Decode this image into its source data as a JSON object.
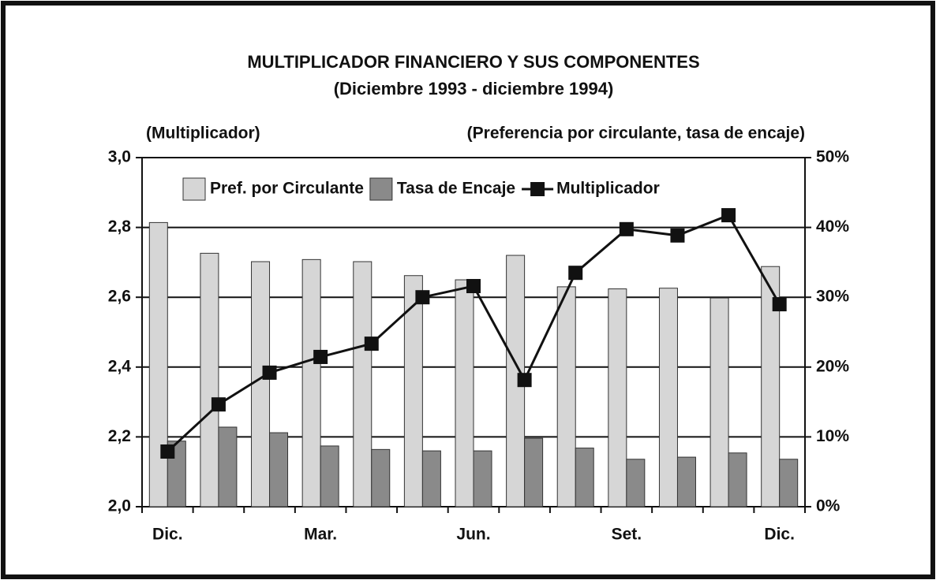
{
  "chart_data": {
    "type": "bar_line",
    "title": "MULTIPLICADOR FINANCIERO Y SUS COMPONENTES",
    "subtitle": "(Diciembre 1993 - diciembre 1994)",
    "y_axis_label": "(Multiplicador)",
    "y2_axis_label": "(Preferencia por circulante, tasa de encaje)",
    "categories": [
      "Dic.",
      null,
      null,
      "Mar.",
      null,
      null,
      "Jun.",
      null,
      null,
      "Set.",
      null,
      null,
      "Dic."
    ],
    "series": [
      {
        "name": "Pref. por Circulante",
        "type": "bar",
        "axis": "y2",
        "color": "#d6d6d6",
        "values": [
          40.7,
          36.3,
          35.1,
          35.4,
          35.1,
          33.1,
          32.5,
          36.0,
          31.5,
          31.2,
          31.3,
          29.9,
          34.4
        ]
      },
      {
        "name": "Tasa de Encaje",
        "type": "bar",
        "axis": "y2",
        "color": "#8a8a8a",
        "values": [
          9.4,
          11.4,
          10.6,
          8.7,
          8.2,
          8.0,
          8.0,
          9.8,
          8.4,
          6.8,
          7.1,
          7.7,
          6.8
        ]
      },
      {
        "name": "Multiplicador",
        "type": "line",
        "color": "#111111",
        "values": [
          2.158,
          2.293,
          2.384,
          2.429,
          2.467,
          2.6,
          2.632,
          2.363,
          2.67,
          2.795,
          2.777,
          2.835,
          2.58
        ]
      }
    ],
    "ylim": [
      2.0,
      3.0
    ],
    "yticks": [
      {
        "value": 2.0,
        "label": "2,0"
      },
      {
        "value": 2.2,
        "label": "2,2"
      },
      {
        "value": 2.4,
        "label": "2,4"
      },
      {
        "value": 2.6,
        "label": "2,6"
      },
      {
        "value": 2.8,
        "label": "2,8"
      },
      {
        "value": 3.0,
        "label": "3,0"
      }
    ],
    "y2lim": [
      0,
      50
    ],
    "y2ticks": [
      {
        "value": 0,
        "label": "0%"
      },
      {
        "value": 10,
        "label": "10%"
      },
      {
        "value": 20,
        "label": "20%"
      },
      {
        "value": 30,
        "label": "30%"
      },
      {
        "value": 40,
        "label": "40%"
      },
      {
        "value": 50,
        "label": "50%"
      }
    ],
    "grid": true,
    "legend": "top"
  }
}
